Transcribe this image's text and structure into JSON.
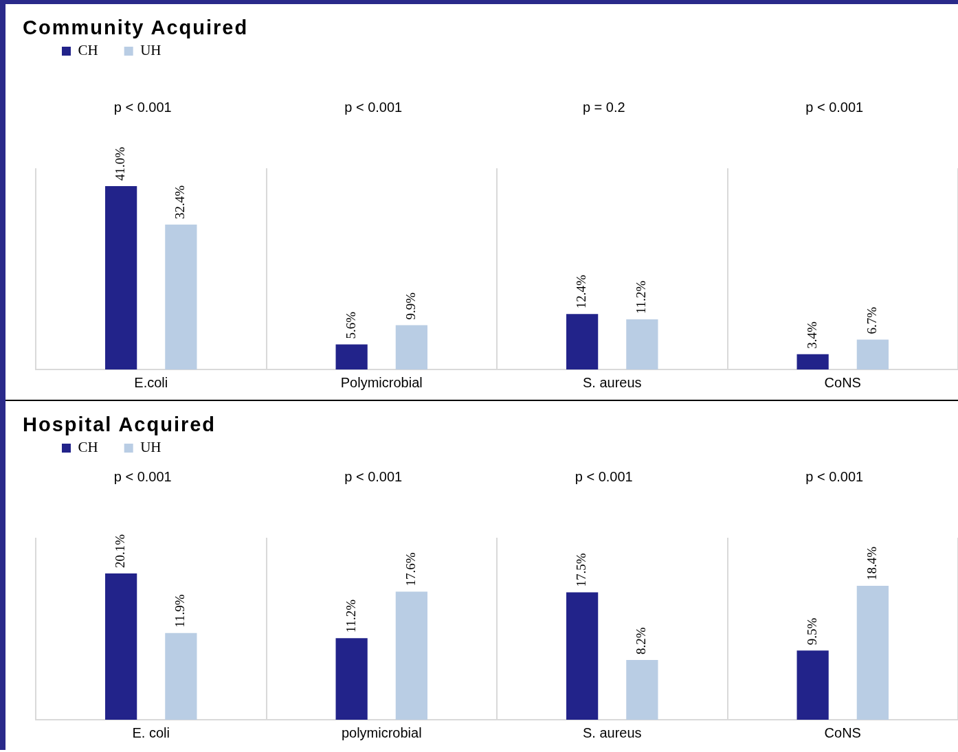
{
  "chart_data": [
    {
      "type": "bar",
      "title": "Community Acquired",
      "categories": [
        "E.coli",
        "Polymicrobial",
        "S. aureus",
        "CoNS"
      ],
      "series": [
        {
          "name": "CH",
          "color": "#22238a",
          "values": [
            41.0,
            5.6,
            12.4,
            3.4
          ],
          "value_labels": [
            "41.0%",
            "5.6%",
            "12.4%",
            "3.4%"
          ]
        },
        {
          "name": "UH",
          "color": "#b9cde4",
          "values": [
            32.4,
            9.9,
            11.2,
            6.7
          ],
          "value_labels": [
            "32.4%",
            "9.9%",
            "11.2%",
            "6.7%"
          ]
        }
      ],
      "tick_labels": "x",
      "grid": "x",
      "legend": "top left",
      "annotations": [
        "p < 0.001",
        "p < 0.001",
        "p = 0.2",
        "p < 0.001"
      ]
    },
    {
      "type": "bar",
      "title": "Hospital Acquired",
      "categories": [
        "E. coli",
        "polymicrobial",
        "S. aureus",
        "CoNS"
      ],
      "series": [
        {
          "name": "CH",
          "color": "#22238a",
          "values": [
            20.1,
            11.2,
            17.5,
            9.5
          ],
          "value_labels": [
            "20.1%",
            "11.2%",
            "17.5%",
            "9.5%"
          ]
        },
        {
          "name": "UH",
          "color": "#b9cde4",
          "values": [
            11.9,
            17.6,
            8.2,
            18.4
          ],
          "value_labels": [
            "11.9%",
            "17.6%",
            "8.2%",
            "18.4%"
          ]
        }
      ],
      "tick_labels": "x",
      "grid": "x",
      "legend": "top left",
      "annotations": [
        "p < 0.001",
        "p < 0.001",
        "p < 0.001",
        "p < 0.001"
      ]
    }
  ]
}
